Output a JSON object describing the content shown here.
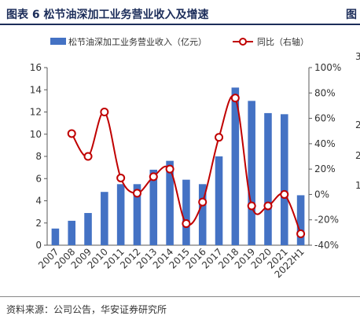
{
  "figure": {
    "title": "图表 6  松节油深加工业务营业收入及增速",
    "next_title_fragment": "图",
    "source": "资料来源：公司公告，华安证券研究所",
    "right_edge_ticks": [
      "3",
      "2",
      "2",
      "1",
      "1"
    ]
  },
  "chart_data": {
    "type": "bar+line",
    "categories": [
      "2007",
      "2008",
      "2009",
      "2010",
      "2011",
      "2012",
      "2013",
      "2014",
      "2015",
      "2016",
      "2017",
      "2018",
      "2019",
      "2020",
      "2021",
      "2022H1"
    ],
    "series": [
      {
        "name": "松节油深加工业务营业收入（亿元）",
        "type": "bar",
        "axis": "left",
        "color": "#4472c4",
        "values": [
          1.5,
          2.2,
          2.9,
          4.8,
          5.5,
          5.5,
          6.8,
          7.6,
          5.9,
          5.5,
          8.0,
          14.2,
          13.0,
          11.9,
          11.8,
          4.5
        ]
      },
      {
        "name": "同比（右轴）",
        "type": "line",
        "axis": "right",
        "color": "#c00000",
        "values": [
          null,
          48,
          30,
          65,
          13,
          1,
          14,
          20,
          -23,
          -6,
          45,
          76,
          -9,
          -9,
          0,
          -31
        ]
      }
    ],
    "y_left": {
      "min": 0,
      "max": 16,
      "step": 2,
      "tick_labels": [
        "0",
        "2",
        "4",
        "6",
        "8",
        "10",
        "12",
        "14",
        "16"
      ]
    },
    "y_right": {
      "min": -40,
      "max": 100,
      "step": 20,
      "tick_labels": [
        "-40%",
        "-20%",
        "0%",
        "20%",
        "40%",
        "60%",
        "80%",
        "100%"
      ]
    },
    "legend_position": "top",
    "grid": false
  }
}
